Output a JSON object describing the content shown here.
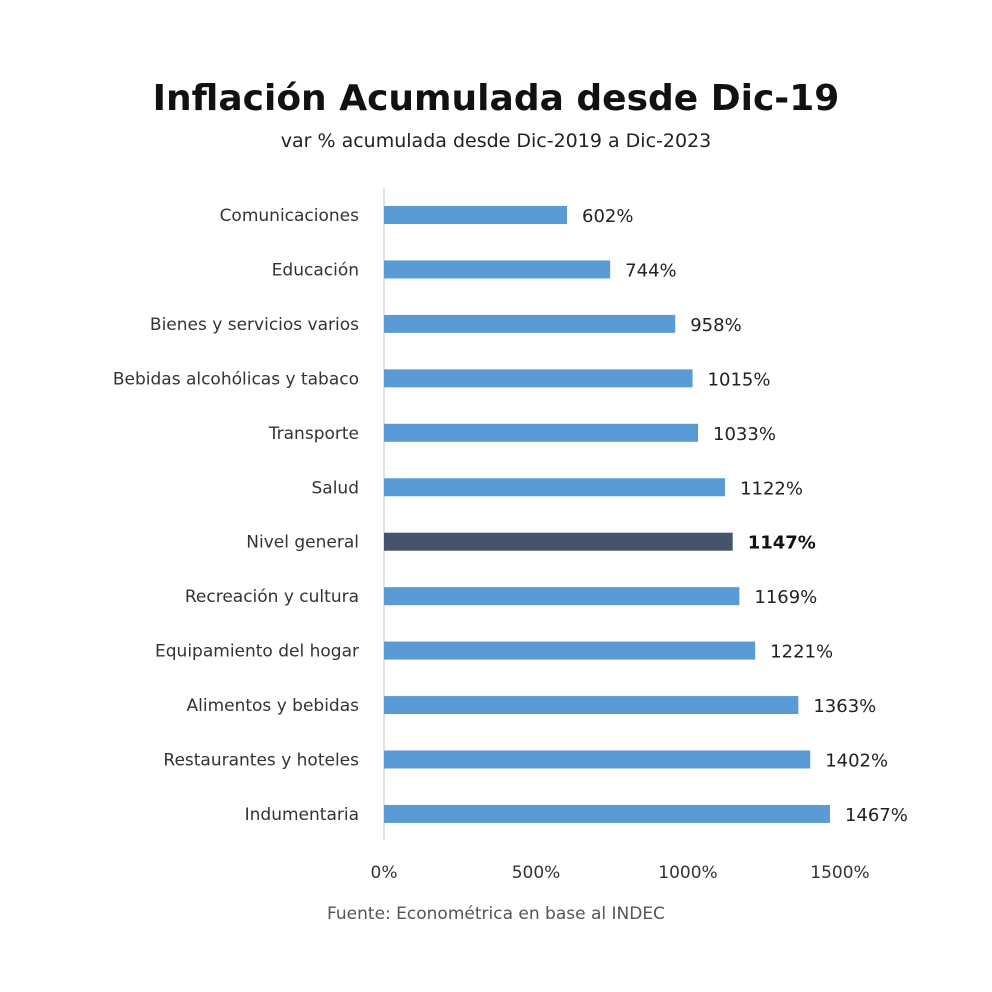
{
  "chart_data": {
    "type": "bar",
    "orientation": "horizontal",
    "title": "Inflación Acumulada desde Dic-19",
    "subtitle": "var % acumulada desde Dic-2019 a Dic-2023",
    "source": "Fuente: Econométrica en base al INDEC",
    "categories": [
      "Comunicaciones",
      "Educación",
      "Bienes y servicios varios",
      "Bebidas alcohólicas y tabaco",
      "Transporte",
      "Salud",
      "Nivel general",
      "Recreación y cultura",
      "Equipamiento del hogar",
      "Alimentos y bebidas",
      "Restaurantes y hoteles",
      "Indumentaria"
    ],
    "values": [
      602,
      744,
      958,
      1015,
      1033,
      1122,
      1147,
      1169,
      1221,
      1363,
      1402,
      1467
    ],
    "value_labels": [
      "602%",
      "744%",
      "958%",
      "1015%",
      "1033%",
      "1122%",
      "1147%",
      "1169%",
      "1221%",
      "1363%",
      "1402%",
      "1467%"
    ],
    "highlight_index": 6,
    "colors": {
      "bar": "#5b9bd5",
      "highlight": "#44546a",
      "axis": "#d9d9d9"
    },
    "xlim": [
      0,
      1500
    ],
    "xticks": [
      0,
      500,
      1000,
      1500
    ],
    "xtick_labels": [
      "0%",
      "500%",
      "1000%",
      "1500%"
    ],
    "grid": false,
    "legend": "none"
  }
}
